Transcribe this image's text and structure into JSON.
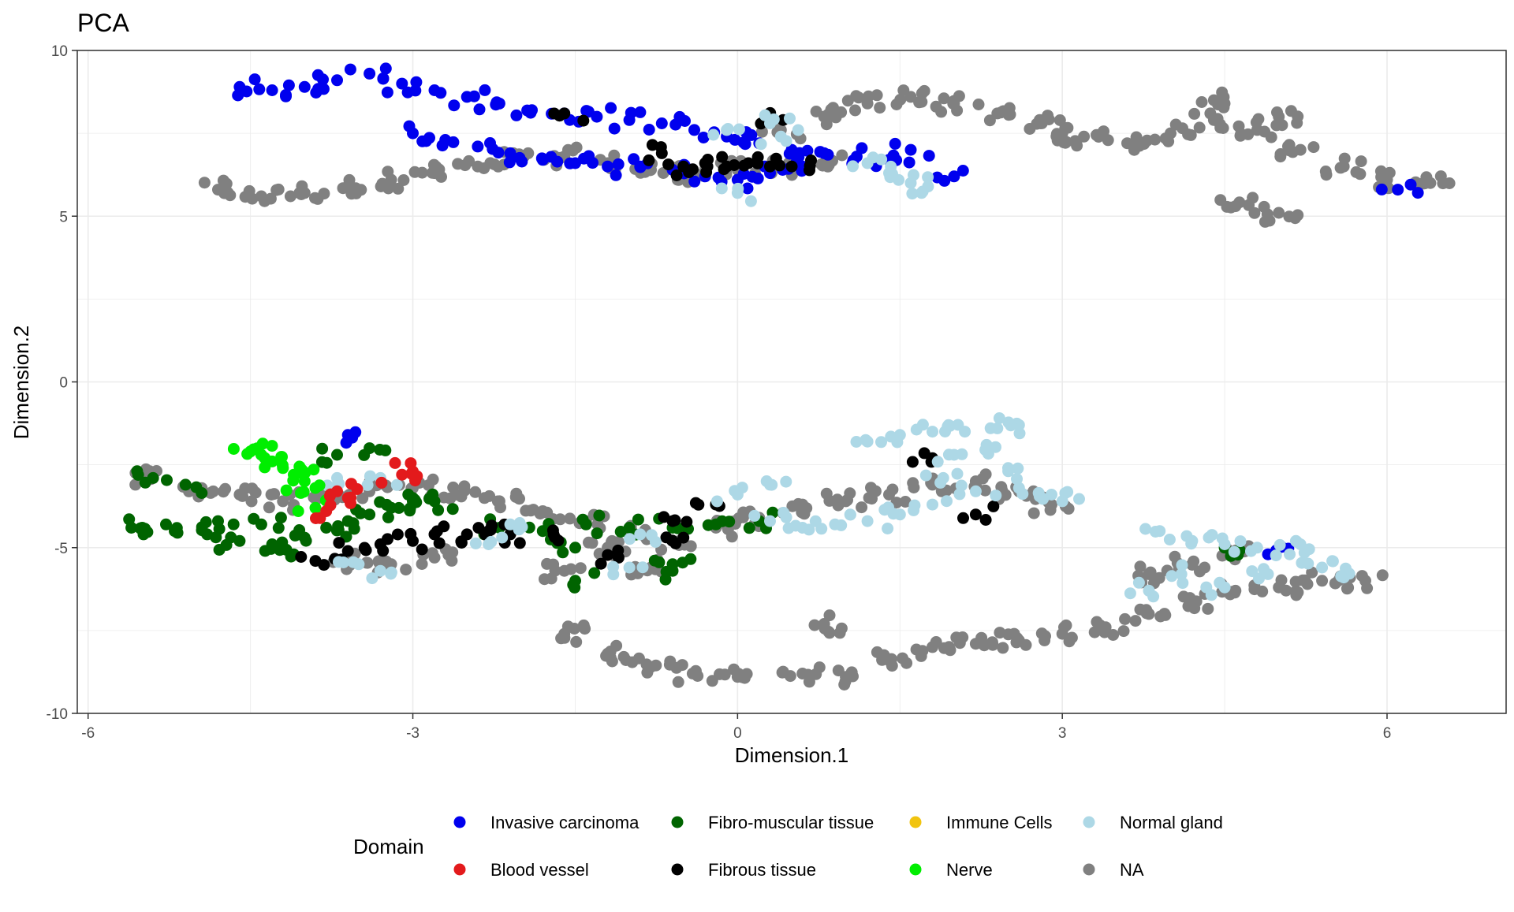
{
  "chart_data": {
    "type": "scatter",
    "title": "PCA",
    "xlabel": "Dimension.1",
    "ylabel": "Dimension.2",
    "xlim": [
      -6.1,
      7.1
    ],
    "ylim": [
      -10,
      10
    ],
    "x_ticks": [
      -6,
      -3,
      0,
      3,
      6
    ],
    "y_ticks": [
      10,
      5,
      0,
      -5,
      -10
    ],
    "x_tick_labels": [
      "-6",
      "-3",
      "0",
      "3",
      "6"
    ],
    "y_tick_labels": [
      "10",
      "5",
      "0",
      "-5",
      "-10"
    ],
    "grid": true,
    "legend": {
      "title": "Domain",
      "position": "bottom",
      "entries": [
        {
          "name": "Invasive carcinoma",
          "color": "#0000ee"
        },
        {
          "name": "Blood vessel",
          "color": "#e31a1c"
        },
        {
          "name": "Fibro-muscular tissue",
          "color": "#006400"
        },
        {
          "name": "Fibrous tissue",
          "color": "#000000"
        },
        {
          "name": "Immune Cells",
          "color": "#f1c40f"
        },
        {
          "name": "Nerve",
          "color": "#00ee00"
        },
        {
          "name": "Normal gland",
          "color": "#add8e6"
        },
        {
          "name": "NA",
          "color": "#808080"
        }
      ]
    },
    "series": [
      {
        "name": "NA",
        "color": "#808080",
        "points": [
          [
            -4.8,
            5.8
          ],
          [
            -4.4,
            5.6
          ],
          [
            -4.0,
            5.7
          ],
          [
            -3.6,
            5.9
          ],
          [
            -3.2,
            6.1
          ],
          [
            -2.8,
            6.3
          ],
          [
            -2.4,
            6.5
          ],
          [
            -2.0,
            6.7
          ],
          [
            -1.6,
            6.8
          ],
          [
            -1.2,
            6.6
          ],
          [
            -0.8,
            6.4
          ],
          [
            -0.4,
            6.3
          ],
          [
            0.0,
            6.4
          ],
          [
            0.4,
            6.5
          ],
          [
            0.8,
            6.6
          ],
          [
            0.4,
            7.6
          ],
          [
            0.8,
            8.0
          ],
          [
            1.2,
            8.4
          ],
          [
            1.6,
            8.6
          ],
          [
            2.0,
            8.4
          ],
          [
            2.4,
            8.1
          ],
          [
            2.8,
            7.8
          ],
          [
            3.2,
            7.4
          ],
          [
            3.6,
            7.2
          ],
          [
            4.0,
            7.5
          ],
          [
            4.4,
            7.9
          ],
          [
            4.8,
            7.6
          ],
          [
            5.2,
            7.0
          ],
          [
            5.6,
            6.5
          ],
          [
            6.0,
            6.1
          ],
          [
            6.4,
            6.0
          ],
          [
            4.6,
            5.3
          ],
          [
            5.0,
            5.1
          ],
          [
            4.4,
            8.5
          ],
          [
            5.0,
            8.0
          ],
          [
            3.0,
            7.5
          ],
          [
            -5.4,
            -2.9
          ],
          [
            -5.0,
            -3.2
          ],
          [
            -4.6,
            -3.4
          ],
          [
            -4.2,
            -3.6
          ],
          [
            -3.8,
            -3.4
          ],
          [
            -3.4,
            -3.3
          ],
          [
            -3.0,
            -3.2
          ],
          [
            -2.6,
            -3.4
          ],
          [
            -2.2,
            -3.6
          ],
          [
            -1.8,
            -3.9
          ],
          [
            -1.4,
            -4.2
          ],
          [
            -1.0,
            -4.6
          ],
          [
            -0.6,
            -4.8
          ],
          [
            -0.2,
            -4.4
          ],
          [
            0.2,
            -4.1
          ],
          [
            0.6,
            -3.8
          ],
          [
            1.0,
            -3.6
          ],
          [
            1.4,
            -3.4
          ],
          [
            1.8,
            -3.1
          ],
          [
            2.2,
            -3.0
          ],
          [
            2.6,
            -3.3
          ],
          [
            2.9,
            -3.7
          ],
          [
            -3.6,
            -5.4
          ],
          [
            -3.2,
            -5.5
          ],
          [
            -2.8,
            -5.3
          ],
          [
            -1.2,
            -5.0
          ],
          [
            -0.8,
            -5.6
          ],
          [
            -1.6,
            -5.7
          ],
          [
            -1.6,
            -7.6
          ],
          [
            -1.2,
            -8.2
          ],
          [
            -0.8,
            -8.6
          ],
          [
            -0.4,
            -8.8
          ],
          [
            0.0,
            -8.9
          ],
          [
            0.6,
            -8.8
          ],
          [
            1.0,
            -8.9
          ],
          [
            1.4,
            -8.4
          ],
          [
            1.8,
            -8.0
          ],
          [
            2.2,
            -7.9
          ],
          [
            2.6,
            -7.8
          ],
          [
            3.0,
            -7.6
          ],
          [
            3.4,
            -7.4
          ],
          [
            3.8,
            -7.0
          ],
          [
            4.2,
            -6.6
          ],
          [
            4.6,
            -6.3
          ],
          [
            5.0,
            -6.2
          ],
          [
            5.4,
            -6.0
          ],
          [
            5.8,
            -6.0
          ],
          [
            3.8,
            -5.8
          ],
          [
            4.2,
            -5.5
          ],
          [
            0.8,
            -7.3
          ],
          [
            4.6,
            -5.2
          ]
        ]
      },
      {
        "name": "Invasive carcinoma",
        "color": "#0000ee",
        "points": [
          [
            -4.6,
            8.9
          ],
          [
            -4.3,
            8.8
          ],
          [
            -4.0,
            8.9
          ],
          [
            -3.7,
            9.1
          ],
          [
            -3.4,
            9.3
          ],
          [
            -3.1,
            9.0
          ],
          [
            -2.8,
            8.8
          ],
          [
            -2.5,
            8.6
          ],
          [
            -2.2,
            8.4
          ],
          [
            -1.9,
            8.2
          ],
          [
            -1.6,
            8.1
          ],
          [
            -1.3,
            8.0
          ],
          [
            -1.0,
            7.9
          ],
          [
            -0.7,
            7.8
          ],
          [
            -0.4,
            7.6
          ],
          [
            -0.1,
            7.4
          ],
          [
            0.2,
            7.2
          ],
          [
            0.5,
            7.0
          ],
          [
            0.8,
            6.9
          ],
          [
            1.1,
            6.8
          ],
          [
            1.4,
            6.7
          ],
          [
            1.6,
            7.0
          ],
          [
            -3.0,
            7.5
          ],
          [
            -2.7,
            7.3
          ],
          [
            -2.4,
            7.1
          ],
          [
            -2.1,
            6.9
          ],
          [
            -1.8,
            6.7
          ],
          [
            -1.5,
            6.6
          ],
          [
            -1.2,
            6.5
          ],
          [
            -0.9,
            6.5
          ],
          [
            -0.6,
            6.4
          ],
          [
            -0.3,
            6.2
          ],
          [
            0.0,
            6.1
          ],
          [
            0.3,
            6.3
          ],
          [
            0.6,
            6.5
          ],
          [
            2.0,
            6.2
          ],
          [
            6.1,
            5.8
          ],
          [
            -3.6,
            -1.6
          ],
          [
            4.9,
            -5.2
          ]
        ]
      },
      {
        "name": "Fibro-muscular tissue",
        "color": "#006400",
        "points": [
          [
            -5.5,
            -4.4
          ],
          [
            -5.2,
            -4.5
          ],
          [
            -4.9,
            -4.6
          ],
          [
            -4.6,
            -4.8
          ],
          [
            -4.3,
            -4.9
          ],
          [
            -4.0,
            -4.7
          ],
          [
            -3.8,
            -4.4
          ],
          [
            -3.6,
            -4.2
          ],
          [
            -3.4,
            -4.0
          ],
          [
            -3.2,
            -3.8
          ],
          [
            -3.0,
            -3.6
          ],
          [
            -4.8,
            -4.2
          ],
          [
            -4.4,
            -4.3
          ],
          [
            -4.1,
            -5.2
          ],
          [
            -3.7,
            -2.2
          ],
          [
            -3.4,
            -2.0
          ],
          [
            -5.4,
            -2.9
          ],
          [
            -5.1,
            -3.1
          ],
          [
            -3.0,
            -3.5
          ],
          [
            -2.8,
            -3.6
          ],
          [
            -2.2,
            -4.4
          ],
          [
            -1.8,
            -4.5
          ],
          [
            -1.4,
            -4.3
          ],
          [
            -1.0,
            -4.4
          ],
          [
            -0.6,
            -4.4
          ],
          [
            -0.2,
            -4.3
          ],
          [
            0.2,
            -4.2
          ],
          [
            -0.6,
            -5.7
          ],
          [
            -0.6,
            -5.5
          ],
          [
            -1.5,
            -6.0
          ],
          [
            -1.5,
            -5.0
          ],
          [
            4.5,
            -5.0
          ],
          [
            -5.6,
            -4.4
          ]
        ]
      },
      {
        "name": "Fibrous tissue",
        "color": "#000000",
        "points": [
          [
            -0.7,
            6.9
          ],
          [
            -0.5,
            6.5
          ],
          [
            -0.3,
            6.6
          ],
          [
            -0.1,
            6.5
          ],
          [
            0.1,
            6.6
          ],
          [
            0.3,
            6.5
          ],
          [
            0.5,
            6.5
          ],
          [
            -1.6,
            8.1
          ],
          [
            0.3,
            8.0
          ],
          [
            -3.9,
            -5.4
          ],
          [
            -3.6,
            -5.1
          ],
          [
            -3.3,
            -4.9
          ],
          [
            -3.0,
            -4.8
          ],
          [
            -2.8,
            -4.6
          ],
          [
            -2.5,
            -4.6
          ],
          [
            -2.3,
            -4.5
          ],
          [
            -2.1,
            -4.6
          ],
          [
            -1.7,
            -4.6
          ],
          [
            -1.1,
            -5.3
          ],
          [
            -0.6,
            -4.2
          ],
          [
            -0.5,
            -4.7
          ],
          [
            -0.2,
            -3.7
          ],
          [
            1.8,
            -2.3
          ],
          [
            2.2,
            -4.0
          ]
        ]
      },
      {
        "name": "Normal gland",
        "color": "#add8e6",
        "points": [
          [
            0.3,
            7.8
          ],
          [
            0.4,
            7.4
          ],
          [
            1.4,
            6.3
          ],
          [
            1.6,
            6.0
          ],
          [
            1.7,
            5.7
          ],
          [
            0.0,
            5.7
          ],
          [
            -0.1,
            7.6
          ],
          [
            1.2,
            6.6
          ],
          [
            1.2,
            -1.8
          ],
          [
            1.5,
            -1.6
          ],
          [
            1.8,
            -1.5
          ],
          [
            2.1,
            -1.5
          ],
          [
            2.4,
            -1.4
          ],
          [
            2.6,
            -1.3
          ],
          [
            2.3,
            -1.9
          ],
          [
            2.0,
            -2.2
          ],
          [
            2.5,
            -2.6
          ],
          [
            1.9,
            -2.9
          ],
          [
            2.2,
            -3.3
          ],
          [
            2.6,
            -3.2
          ],
          [
            2.9,
            -3.4
          ],
          [
            3.0,
            -3.6
          ],
          [
            1.8,
            -3.7
          ],
          [
            1.5,
            -4.0
          ],
          [
            1.2,
            -4.2
          ],
          [
            0.9,
            -4.3
          ],
          [
            0.6,
            -4.4
          ],
          [
            0.3,
            -4.2
          ],
          [
            0.0,
            -3.4
          ],
          [
            0.3,
            -3.1
          ],
          [
            -2.1,
            -4.3
          ],
          [
            -2.3,
            -4.9
          ],
          [
            -3.5,
            -5.5
          ],
          [
            -3.3,
            -5.7
          ],
          [
            -3.7,
            -2.9
          ],
          [
            -3.3,
            -2.9
          ],
          [
            -1.0,
            -5.6
          ],
          [
            -0.9,
            -4.6
          ],
          [
            3.9,
            -4.5
          ],
          [
            4.2,
            -4.8
          ],
          [
            4.5,
            -4.9
          ],
          [
            4.8,
            -5.0
          ],
          [
            5.1,
            -5.2
          ],
          [
            5.4,
            -5.6
          ],
          [
            5.6,
            -5.9
          ],
          [
            4.9,
            -5.8
          ],
          [
            4.5,
            -6.2
          ],
          [
            4.1,
            -5.8
          ],
          [
            3.8,
            -6.3
          ],
          [
            5.2,
            -4.9
          ]
        ]
      },
      {
        "name": "Nerve",
        "color": "#00ee00",
        "points": [
          [
            -4.5,
            -2.1
          ],
          [
            -4.4,
            -2.2
          ],
          [
            -4.3,
            -2.4
          ],
          [
            -4.2,
            -2.6
          ],
          [
            -4.1,
            -2.8
          ],
          [
            -4.0,
            -3.0
          ],
          [
            -3.9,
            -3.2
          ],
          [
            -3.9,
            -3.8
          ]
        ]
      },
      {
        "name": "Blood vessel",
        "color": "#e31a1c",
        "points": [
          [
            -3.0,
            -2.7
          ],
          [
            -3.1,
            -2.8
          ],
          [
            -3.6,
            -3.5
          ],
          [
            -3.7,
            -3.3
          ],
          [
            -3.8,
            -3.9
          ]
        ]
      },
      {
        "name": "Immune Cells",
        "color": "#f1c40f",
        "points": []
      }
    ]
  }
}
